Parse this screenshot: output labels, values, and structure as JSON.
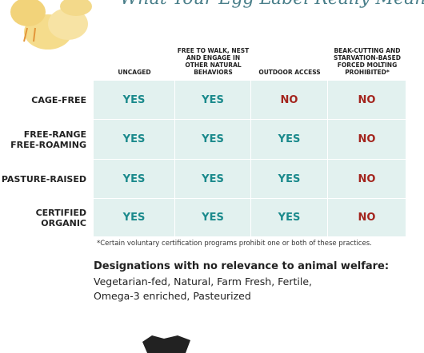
{
  "header": {
    "title": "What Your Egg Label Really Means"
  },
  "table": {
    "columns": [
      "UNCAGED",
      "FREE TO WALK, NEST AND ENGAGE IN OTHER NATURAL BEHAVIORS",
      "OUTDOOR ACCESS",
      "BEAK-CUTTING AND STARVATION-BASED FORCED MOLTING PROHIBITED*"
    ],
    "rows": [
      {
        "label": [
          "CAGE-FREE"
        ],
        "cells": [
          "YES",
          "YES",
          "NO",
          "NO"
        ]
      },
      {
        "label": [
          "FREE-RANGE",
          "FREE-ROAMING"
        ],
        "cells": [
          "YES",
          "YES",
          "YES",
          "NO"
        ]
      },
      {
        "label": [
          "PASTURE-RAISED"
        ],
        "cells": [
          "YES",
          "YES",
          "YES",
          "NO"
        ]
      },
      {
        "label": [
          "CERTIFIED",
          "ORGANIC"
        ],
        "cells": [
          "YES",
          "YES",
          "YES",
          "NO"
        ]
      }
    ]
  },
  "footnote": "*Certain voluntary certification programs prohibit one or both of these practices.",
  "note": {
    "heading": "Designations with no relevance to animal welfare:",
    "lines": [
      "Vegetarian-fed, Natural, Farm Fresh, Fertile,",
      "Omega-3 enriched, Pasteurized"
    ]
  }
}
